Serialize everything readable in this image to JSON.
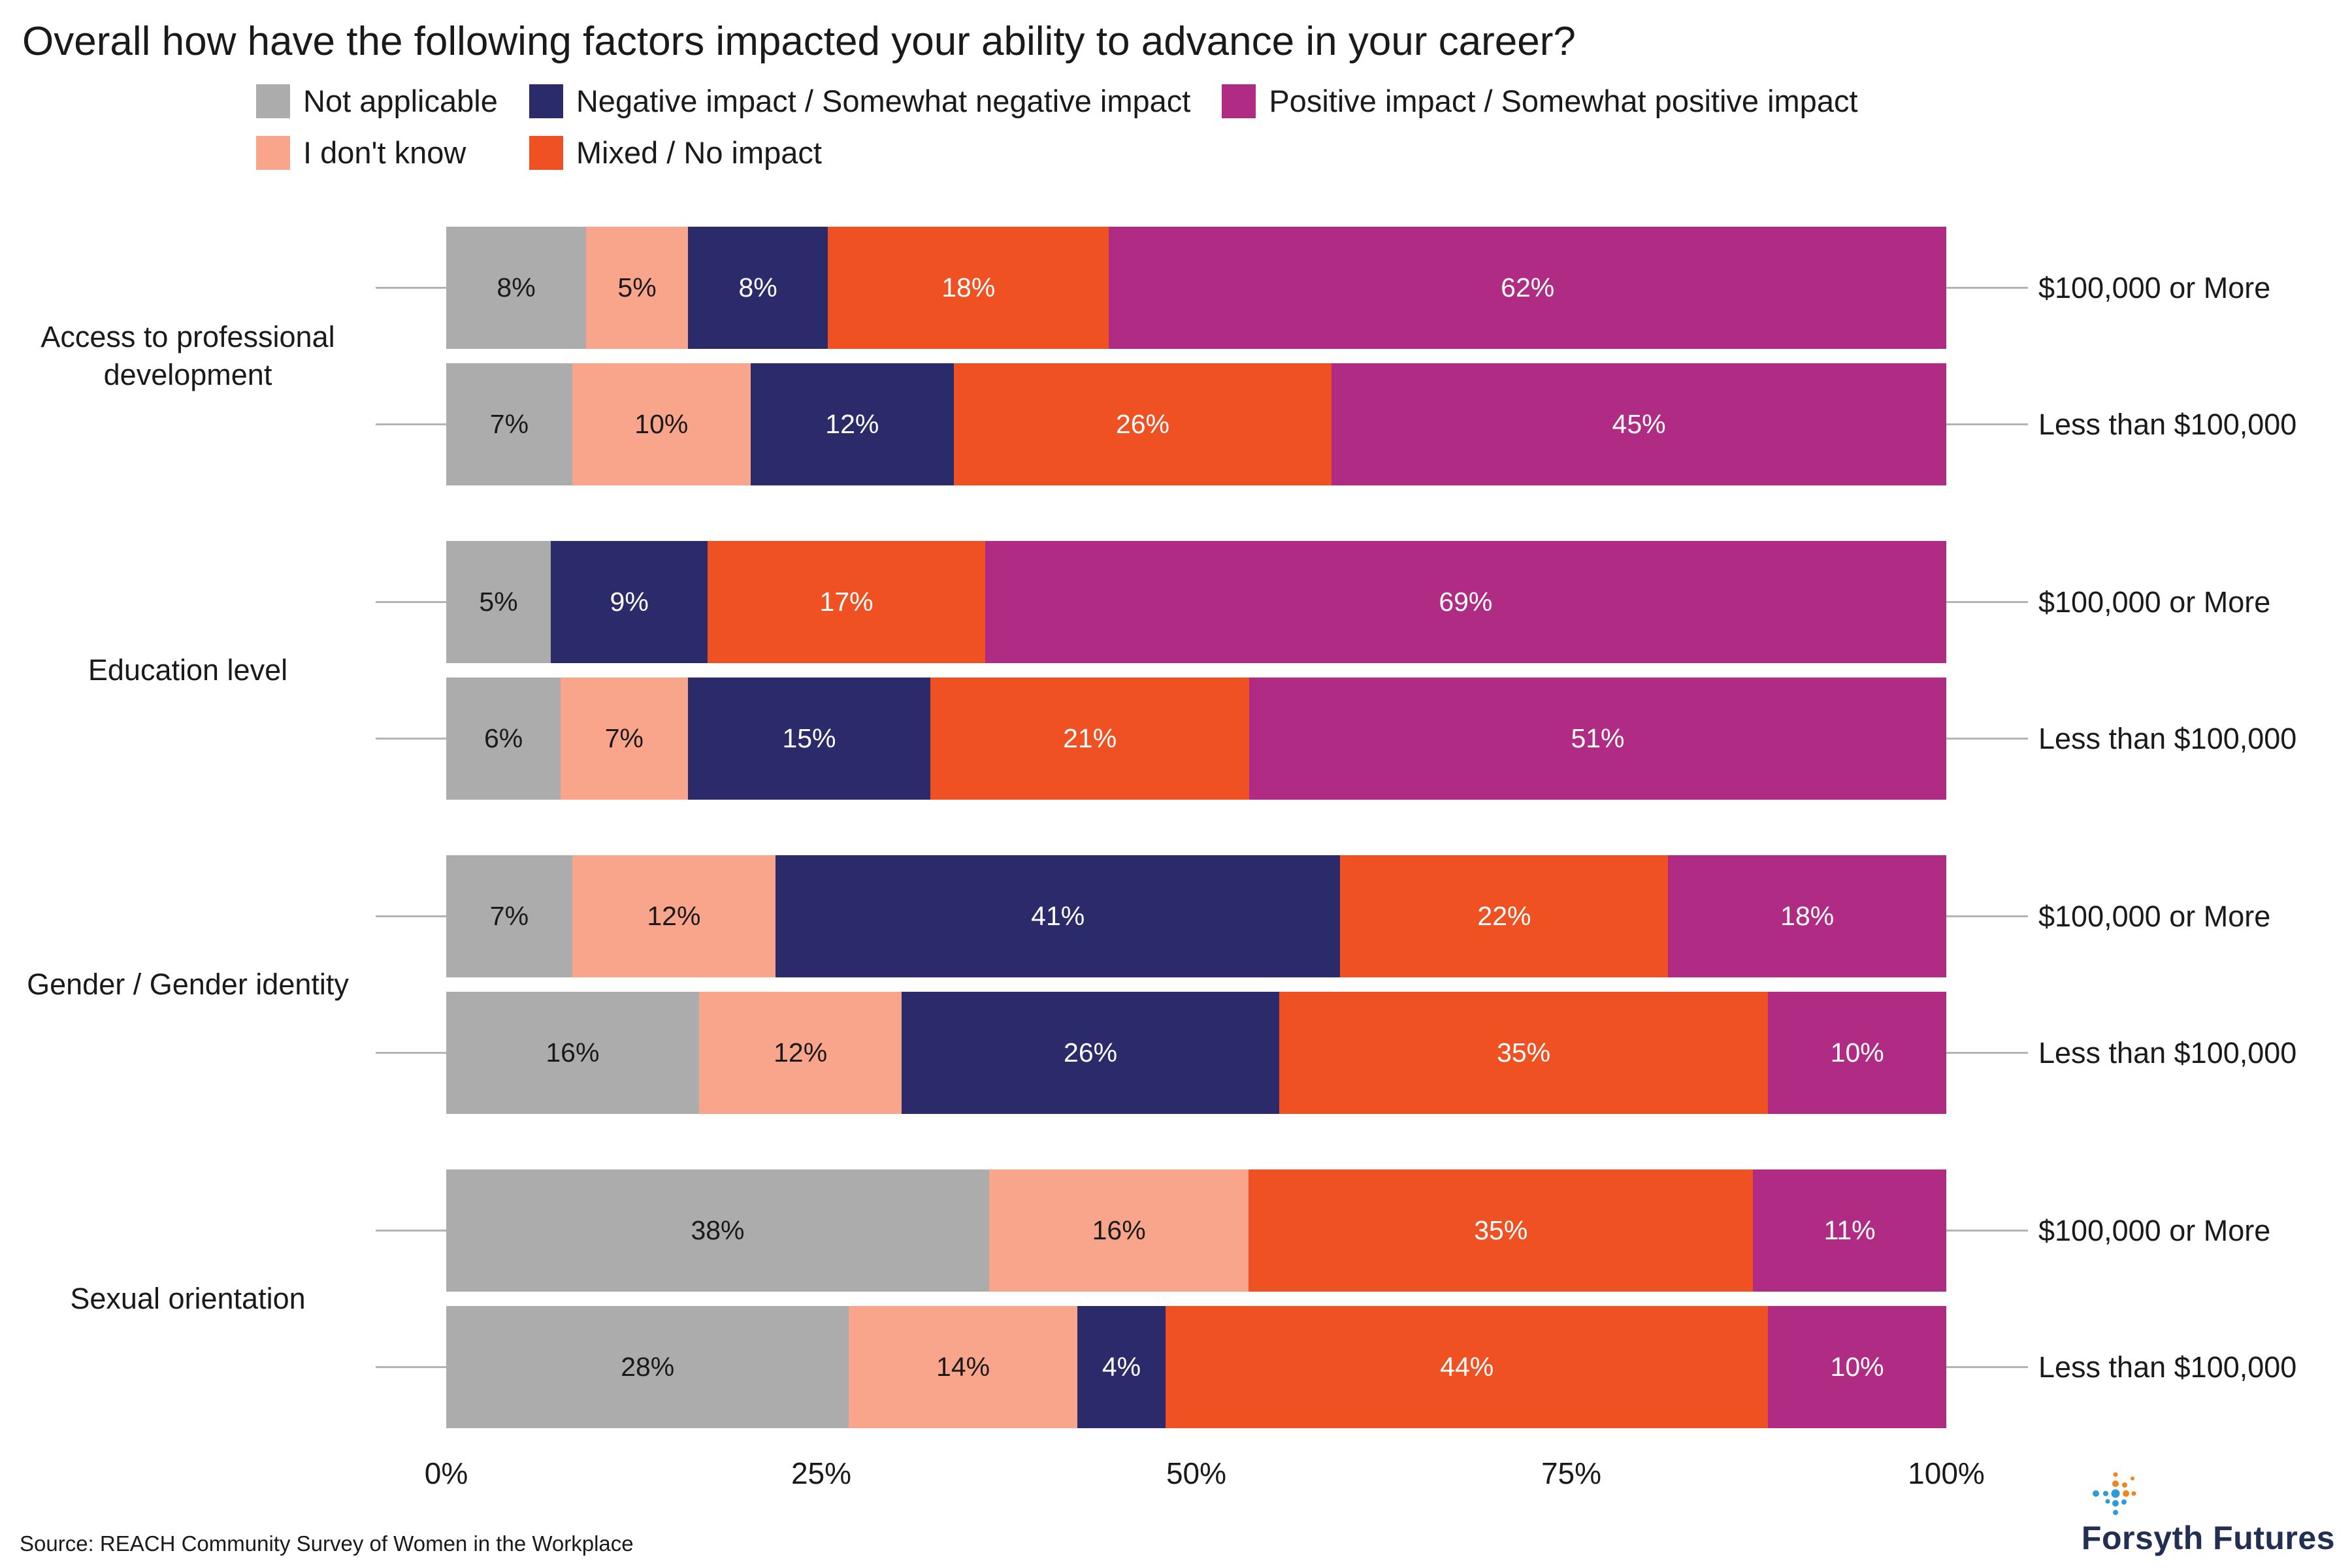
{
  "title": "Overall how have the following factors impacted your ability to advance in your career?",
  "legend": {
    "display_order": [
      0,
      2,
      4,
      1,
      3
    ]
  },
  "chart_data": {
    "type": "bar",
    "orientation": "horizontal",
    "stacked": true,
    "x_axis": {
      "ticks": [
        "0%",
        "25%",
        "50%",
        "75%",
        "100%"
      ],
      "range": [
        0,
        100
      ]
    },
    "series": [
      {
        "name": "Not applicable",
        "color": "#ACACAC",
        "text_color": "#1A1A1A"
      },
      {
        "name": "I don't know",
        "color": "#F9A58C",
        "text_color": "#1A1A1A"
      },
      {
        "name": "Negative impact / Somewhat negative impact",
        "color": "#2B2A6B",
        "text_color": "#FFFFFF"
      },
      {
        "name": "Mixed / No impact",
        "color": "#F05123",
        "text_color": "#FFFFFF"
      },
      {
        "name": "Positive impact / Somewhat positive impact",
        "color": "#B02C84",
        "text_color": "#FFFFFF"
      }
    ],
    "groups": [
      {
        "factor": "Access to professional development",
        "rows": [
          {
            "label": "$100,000 or More",
            "values": [
              8,
              5,
              8,
              18,
              62
            ]
          },
          {
            "label": "Less than $100,000",
            "values": [
              7,
              10,
              12,
              26,
              45
            ]
          }
        ]
      },
      {
        "factor": "Education level",
        "rows": [
          {
            "label": "$100,000 or More",
            "values": [
              5,
              0,
              9,
              17,
              69
            ]
          },
          {
            "label": "Less than $100,000",
            "values": [
              6,
              7,
              15,
              21,
              51
            ]
          }
        ]
      },
      {
        "factor": "Gender / Gender identity",
        "rows": [
          {
            "label": "$100,000 or More",
            "values": [
              7,
              12,
              41,
              22,
              18
            ]
          },
          {
            "label": "Less than $100,000",
            "values": [
              16,
              12,
              26,
              35,
              10
            ]
          }
        ]
      },
      {
        "factor": "Sexual orientation",
        "rows": [
          {
            "label": "$100,000 or More",
            "values": [
              38,
              16,
              0,
              35,
              11
            ]
          },
          {
            "label": "Less than $100,000",
            "values": [
              28,
              14,
              4,
              44,
              10
            ]
          }
        ]
      }
    ]
  },
  "source": "Source: REACH Community Survey of Women in the Workplace",
  "logo": {
    "text": "Forsyth Futures"
  }
}
